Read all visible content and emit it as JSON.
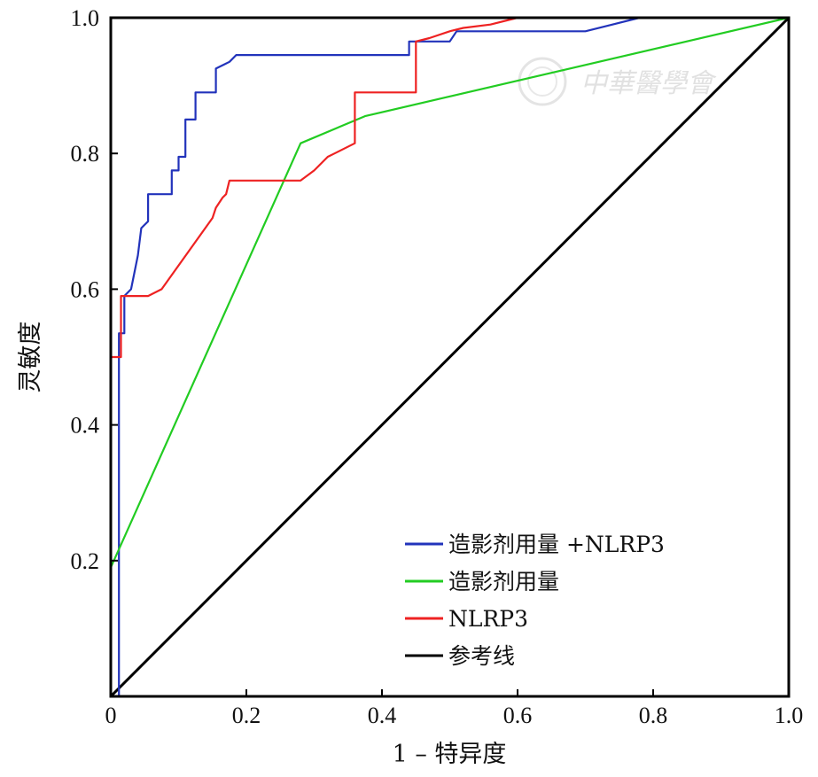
{
  "chart_data": {
    "type": "line",
    "xlabel": "1 – 特异度",
    "ylabel": "灵敏度",
    "xlim": [
      0,
      1
    ],
    "ylim": [
      0,
      1
    ],
    "x_ticks": [
      "0",
      "0.2",
      "0.4",
      "0.6",
      "0.8",
      "1.0"
    ],
    "y_ticks": [
      "0.2",
      "0.4",
      "0.6",
      "0.8",
      "1.0"
    ],
    "grid": false,
    "legend_position": "bottom-right",
    "watermark": "中華醫學會",
    "series": [
      {
        "name": "造影剂用量 +NLRP3",
        "color": "#2233bb",
        "x": [
          0,
          0.012,
          0.012,
          0.02,
          0.02,
          0.03,
          0.04,
          0.045,
          0.055,
          0.055,
          0.09,
          0.09,
          0.1,
          0.1,
          0.11,
          0.11,
          0.125,
          0.125,
          0.155,
          0.155,
          0.175,
          0.185,
          0.44,
          0.44,
          0.5,
          0.51,
          0.53,
          0.7,
          0.74,
          0.78,
          1.0
        ],
        "y": [
          0,
          0,
          0.535,
          0.535,
          0.59,
          0.6,
          0.65,
          0.69,
          0.7,
          0.74,
          0.74,
          0.775,
          0.775,
          0.795,
          0.795,
          0.85,
          0.85,
          0.89,
          0.89,
          0.925,
          0.935,
          0.945,
          0.945,
          0.965,
          0.965,
          0.98,
          0.98,
          0.98,
          0.99,
          1.0,
          1.0
        ]
      },
      {
        "name": "造影剂用量",
        "color": "#22cc22",
        "x": [
          0,
          0.28,
          0.375,
          1.0
        ],
        "y": [
          0.19,
          0.815,
          0.855,
          1.0
        ]
      },
      {
        "name": "NLRP3",
        "color": "#ee2222",
        "x": [
          0,
          0.015,
          0.015,
          0.04,
          0.045,
          0.055,
          0.075,
          0.15,
          0.155,
          0.165,
          0.17,
          0.175,
          0.28,
          0.3,
          0.32,
          0.33,
          0.36,
          0.36,
          0.45,
          0.45,
          0.47,
          0.5,
          0.52,
          0.56,
          0.6,
          1.0
        ],
        "y": [
          0.5,
          0.5,
          0.59,
          0.59,
          0.59,
          0.59,
          0.6,
          0.705,
          0.72,
          0.735,
          0.74,
          0.76,
          0.76,
          0.775,
          0.795,
          0.8,
          0.815,
          0.89,
          0.89,
          0.965,
          0.97,
          0.98,
          0.985,
          0.99,
          1.0,
          1.0
        ]
      },
      {
        "name": "参考线",
        "color": "#000000",
        "x": [
          0,
          1
        ],
        "y": [
          0,
          1
        ]
      }
    ]
  }
}
